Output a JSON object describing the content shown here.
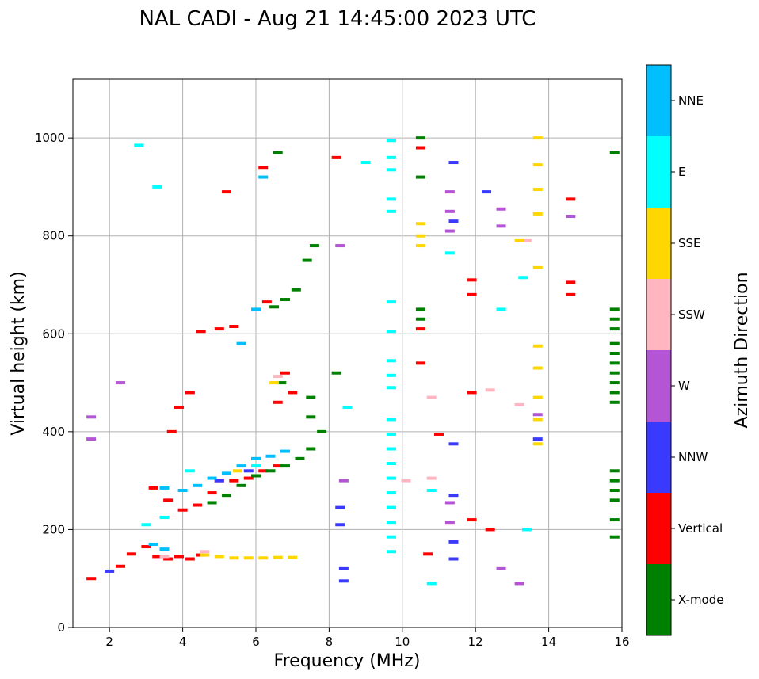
{
  "chart_data": {
    "type": "scatter",
    "title": "NAL CADI - Aug 21 14:45:00 2023 UTC",
    "xlabel": "Frequency (MHz)",
    "ylabel": "Virtual height (km)",
    "xlim": [
      1,
      16
    ],
    "ylim": [
      0,
      1120
    ],
    "xticks": [
      2,
      4,
      6,
      8,
      10,
      12,
      14,
      16
    ],
    "yticks": [
      0,
      200,
      400,
      600,
      800,
      1000
    ],
    "grid": true,
    "colorbar": {
      "label": "Azimuth Direction",
      "categories": [
        {
          "name": "X-mode",
          "color": "#008000"
        },
        {
          "name": "Vertical",
          "color": "#ff0000"
        },
        {
          "name": "NNW",
          "color": "#3a3aff"
        },
        {
          "name": "W",
          "color": "#b455d6"
        },
        {
          "name": "SSW",
          "color": "#ffb6c1"
        },
        {
          "name": "SSE",
          "color": "#ffd700"
        },
        {
          "name": "E",
          "color": "#00ffff"
        },
        {
          "name": "NNE",
          "color": "#00bfff"
        }
      ]
    },
    "series": [
      {
        "name": "Vertical",
        "points": [
          [
            1.5,
            100
          ],
          [
            2.3,
            125
          ],
          [
            2.6,
            150
          ],
          [
            3.0,
            165
          ],
          [
            3.3,
            145
          ],
          [
            3.6,
            140
          ],
          [
            3.9,
            145
          ],
          [
            4.2,
            140
          ],
          [
            4.5,
            148
          ],
          [
            3.2,
            285
          ],
          [
            3.6,
            260
          ],
          [
            4.0,
            240
          ],
          [
            4.4,
            250
          ],
          [
            4.8,
            275
          ],
          [
            5.0,
            300
          ],
          [
            5.4,
            300
          ],
          [
            5.8,
            305
          ],
          [
            6.2,
            320
          ],
          [
            6.6,
            330
          ],
          [
            4.5,
            605
          ],
          [
            5.0,
            610
          ],
          [
            5.4,
            615
          ],
          [
            6.3,
            665
          ],
          [
            3.7,
            400
          ],
          [
            4.2,
            480
          ],
          [
            3.9,
            450
          ],
          [
            5.2,
            890
          ],
          [
            6.2,
            940
          ],
          [
            6.8,
            520
          ],
          [
            7.0,
            480
          ],
          [
            6.6,
            460
          ],
          [
            8.2,
            960
          ],
          [
            10.5,
            980
          ],
          [
            10.5,
            610
          ],
          [
            10.5,
            540
          ],
          [
            11.0,
            395
          ],
          [
            11.9,
            710
          ],
          [
            11.9,
            680
          ],
          [
            11.9,
            480
          ],
          [
            11.9,
            220
          ],
          [
            12.4,
            200
          ],
          [
            14.6,
            875
          ],
          [
            14.6,
            705
          ],
          [
            14.6,
            680
          ],
          [
            10.7,
            150
          ]
        ]
      },
      {
        "name": "X-mode",
        "points": [
          [
            4.8,
            255
          ],
          [
            5.2,
            270
          ],
          [
            5.6,
            290
          ],
          [
            6.0,
            310
          ],
          [
            6.4,
            320
          ],
          [
            6.8,
            330
          ],
          [
            7.2,
            345
          ],
          [
            7.5,
            365
          ],
          [
            7.8,
            400
          ],
          [
            6.5,
            655
          ],
          [
            6.8,
            670
          ],
          [
            7.1,
            690
          ],
          [
            7.4,
            750
          ],
          [
            7.6,
            780
          ],
          [
            7.5,
            470
          ],
          [
            7.5,
            430
          ],
          [
            6.7,
            500
          ],
          [
            8.2,
            520
          ],
          [
            6.6,
            970
          ],
          [
            10.5,
            920
          ],
          [
            10.5,
            650
          ],
          [
            10.5,
            630
          ],
          [
            10.5,
            1000
          ],
          [
            15.8,
            970
          ],
          [
            15.8,
            650
          ],
          [
            15.8,
            630
          ],
          [
            15.8,
            610
          ],
          [
            15.8,
            580
          ],
          [
            15.8,
            560
          ],
          [
            15.8,
            540
          ],
          [
            15.8,
            520
          ],
          [
            15.8,
            500
          ],
          [
            15.8,
            480
          ],
          [
            15.8,
            460
          ],
          [
            15.8,
            320
          ],
          [
            15.8,
            300
          ],
          [
            15.8,
            280
          ],
          [
            15.8,
            260
          ],
          [
            15.8,
            220
          ],
          [
            15.8,
            185
          ]
        ]
      },
      {
        "name": "NNW",
        "points": [
          [
            8.3,
            245
          ],
          [
            8.3,
            210
          ],
          [
            8.4,
            120
          ],
          [
            8.4,
            95
          ],
          [
            11.4,
            375
          ],
          [
            11.4,
            270
          ],
          [
            11.4,
            175
          ],
          [
            11.4,
            140
          ],
          [
            13.7,
            385
          ],
          [
            11.4,
            830
          ],
          [
            11.4,
            950
          ],
          [
            12.3,
            890
          ],
          [
            5.0,
            300
          ],
          [
            5.8,
            320
          ],
          [
            2.0,
            115
          ]
        ]
      },
      {
        "name": "W",
        "points": [
          [
            1.5,
            430
          ],
          [
            1.5,
            385
          ],
          [
            2.3,
            500
          ],
          [
            8.3,
            780
          ],
          [
            11.3,
            890
          ],
          [
            11.3,
            850
          ],
          [
            11.3,
            810
          ],
          [
            12.7,
            855
          ],
          [
            12.7,
            820
          ],
          [
            13.7,
            435
          ],
          [
            14.6,
            840
          ],
          [
            12.7,
            120
          ],
          [
            13.2,
            90
          ],
          [
            8.4,
            300
          ],
          [
            11.3,
            255
          ],
          [
            11.3,
            215
          ]
        ]
      },
      {
        "name": "SSW",
        "points": [
          [
            10.1,
            300
          ],
          [
            10.8,
            470
          ],
          [
            10.8,
            305
          ],
          [
            12.4,
            485
          ],
          [
            13.2,
            455
          ],
          [
            13.4,
            790
          ],
          [
            6.6,
            513
          ],
          [
            4.6,
            155
          ],
          [
            3.5,
            145
          ]
        ]
      },
      {
        "name": "SSE",
        "points": [
          [
            4.6,
            148
          ],
          [
            5.0,
            145
          ],
          [
            5.4,
            142
          ],
          [
            5.8,
            142
          ],
          [
            6.2,
            142
          ],
          [
            6.6,
            143
          ],
          [
            7.0,
            143
          ],
          [
            13.7,
            1000
          ],
          [
            13.7,
            945
          ],
          [
            13.7,
            895
          ],
          [
            13.7,
            845
          ],
          [
            13.7,
            735
          ],
          [
            13.7,
            575
          ],
          [
            13.7,
            530
          ],
          [
            13.7,
            470
          ],
          [
            13.7,
            425
          ],
          [
            13.7,
            375
          ],
          [
            10.5,
            825
          ],
          [
            10.5,
            800
          ],
          [
            10.5,
            780
          ],
          [
            13.2,
            790
          ],
          [
            6.5,
            500
          ],
          [
            5.5,
            320
          ]
        ]
      },
      {
        "name": "E",
        "points": [
          [
            2.8,
            985
          ],
          [
            3.3,
            900
          ],
          [
            9.7,
            995
          ],
          [
            9.7,
            960
          ],
          [
            9.7,
            935
          ],
          [
            9.7,
            875
          ],
          [
            9.7,
            850
          ],
          [
            9.7,
            665
          ],
          [
            9.7,
            605
          ],
          [
            9.7,
            545
          ],
          [
            9.7,
            515
          ],
          [
            9.7,
            490
          ],
          [
            9.7,
            425
          ],
          [
            9.7,
            395
          ],
          [
            9.7,
            365
          ],
          [
            9.7,
            335
          ],
          [
            9.7,
            305
          ],
          [
            9.7,
            275
          ],
          [
            9.7,
            245
          ],
          [
            9.7,
            215
          ],
          [
            9.7,
            185
          ],
          [
            9.7,
            155
          ],
          [
            9.0,
            950
          ],
          [
            8.5,
            450
          ],
          [
            13.3,
            715
          ],
          [
            12.7,
            650
          ],
          [
            13.4,
            200
          ],
          [
            10.8,
            90
          ],
          [
            10.8,
            280
          ],
          [
            11.3,
            765
          ],
          [
            3.0,
            210
          ],
          [
            3.5,
            225
          ],
          [
            4.2,
            320
          ],
          [
            6.0,
            330
          ]
        ]
      },
      {
        "name": "NNE",
        "points": [
          [
            3.5,
            285
          ],
          [
            4.0,
            280
          ],
          [
            4.4,
            290
          ],
          [
            4.8,
            305
          ],
          [
            5.2,
            315
          ],
          [
            5.6,
            330
          ],
          [
            6.0,
            345
          ],
          [
            6.4,
            350
          ],
          [
            6.8,
            360
          ],
          [
            3.2,
            170
          ],
          [
            3.5,
            160
          ],
          [
            6.2,
            920
          ],
          [
            6.0,
            650
          ],
          [
            5.6,
            580
          ]
        ]
      }
    ]
  }
}
